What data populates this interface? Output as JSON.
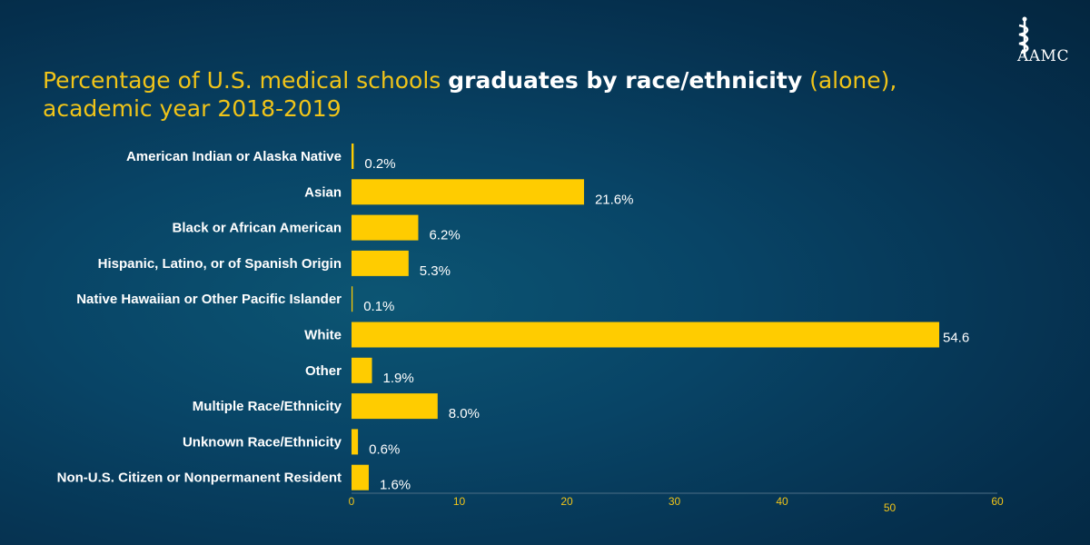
{
  "colors": {
    "bar": "#ffcc00",
    "title_accent": "#f0c419",
    "text": "#ffffff"
  },
  "logo": {
    "text": "AAMC",
    "icon": "caduceus-icon"
  },
  "title": {
    "part1": "Percentage of U.S. medical schools ",
    "part2": "graduates by race/ethnicity",
    "part3": " (alone),",
    "line2": "academic year 2018-2019"
  },
  "chart_data": {
    "type": "bar",
    "orientation": "horizontal",
    "title": "Percentage of U.S. medical schools graduates by race/ethnicity (alone), academic year 2018-2019",
    "categories": [
      "American Indian or Alaska Native",
      "Asian",
      "Black or African American",
      "Hispanic, Latino, or of Spanish Origin",
      "Native Hawaiian or Other Pacific Islander",
      "White",
      "Other",
      "Multiple Race/Ethnicity",
      "Unknown Race/Ethnicity",
      "Non-U.S. Citizen or  Nonpermanent Resident"
    ],
    "values": [
      0.2,
      21.6,
      6.2,
      5.3,
      0.1,
      54.6,
      1.9,
      8.0,
      0.6,
      1.6
    ],
    "value_labels": [
      "0.2%",
      "21.6%",
      "6.2%",
      "5.3%",
      "0.1%",
      "54.6",
      "1.9%",
      "8.0%",
      "0.6%",
      "1.6%"
    ],
    "x_ticks": [
      "0",
      "10",
      "20",
      "30",
      "40",
      "50",
      "60"
    ],
    "xlim": [
      0,
      60
    ],
    "xlabel": "",
    "ylabel": ""
  }
}
